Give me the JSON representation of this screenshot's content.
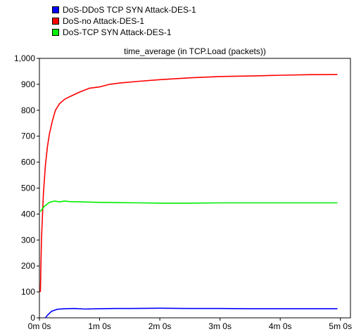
{
  "legend": [
    {
      "label": "DoS-DDoS TCP SYN Attack-DES-1",
      "color": "#0000ff"
    },
    {
      "label": "DoS-no Attack-DES-1",
      "color": "#ff0000"
    },
    {
      "label": "DoS-TCP SYN Attack-DES-1",
      "color": "#00ee00"
    }
  ],
  "chart_data": {
    "type": "line",
    "title": "time_average (in TCP.Load (packets))",
    "xlabel": "",
    "ylabel": "",
    "x_unit": "seconds",
    "xlim": [
      0,
      310
    ],
    "ylim": [
      0,
      1000
    ],
    "x_ticks": [
      {
        "value": 0,
        "label": "0m 0s"
      },
      {
        "value": 60,
        "label": "1m 0s"
      },
      {
        "value": 120,
        "label": "2m 0s"
      },
      {
        "value": 180,
        "label": "3m 0s"
      },
      {
        "value": 240,
        "label": "4m 0s"
      },
      {
        "value": 300,
        "label": "5m 0s"
      }
    ],
    "y_ticks": [
      {
        "value": 0,
        "label": "0"
      },
      {
        "value": 100,
        "label": "100"
      },
      {
        "value": 200,
        "label": "200"
      },
      {
        "value": 300,
        "label": "300"
      },
      {
        "value": 400,
        "label": "400"
      },
      {
        "value": 500,
        "label": "500"
      },
      {
        "value": 600,
        "label": "600"
      },
      {
        "value": 700,
        "label": "700"
      },
      {
        "value": 800,
        "label": "800"
      },
      {
        "value": 900,
        "label": "900"
      },
      {
        "value": 1000,
        "label": "1,000"
      }
    ],
    "grid": true,
    "series": [
      {
        "name": "DoS-DDoS TCP SYN Attack-DES-1",
        "color": "#0000ff",
        "x": [
          6,
          8,
          12,
          18,
          25,
          35,
          45,
          60,
          75,
          90,
          120,
          150,
          180,
          210,
          240,
          270,
          297
        ],
        "y": [
          0,
          10,
          25,
          33,
          35,
          36,
          34,
          35,
          36,
          36,
          37,
          36,
          36,
          35,
          35,
          35,
          35
        ]
      },
      {
        "name": "DoS-no Attack-DES-1",
        "color": "#ff0000",
        "x": [
          1,
          2,
          4,
          6,
          8,
          10,
          13,
          16,
          20,
          25,
          30,
          40,
          50,
          60,
          70,
          80,
          100,
          120,
          150,
          180,
          210,
          240,
          270,
          297
        ],
        "y": [
          100,
          300,
          480,
          590,
          660,
          710,
          760,
          800,
          825,
          842,
          852,
          870,
          885,
          890,
          900,
          905,
          912,
          918,
          925,
          930,
          932,
          935,
          937,
          938
        ]
      },
      {
        "name": "DoS-TCP SYN Attack-DES-1",
        "color": "#00ee00",
        "x": [
          1,
          5,
          10,
          15,
          20,
          25,
          30,
          40,
          50,
          60,
          80,
          100,
          120,
          150,
          180,
          210,
          240,
          270,
          297
        ],
        "y": [
          410,
          430,
          445,
          450,
          447,
          450,
          448,
          447,
          446,
          445,
          444,
          443,
          442,
          442,
          443,
          443,
          443,
          443,
          443
        ]
      }
    ]
  }
}
